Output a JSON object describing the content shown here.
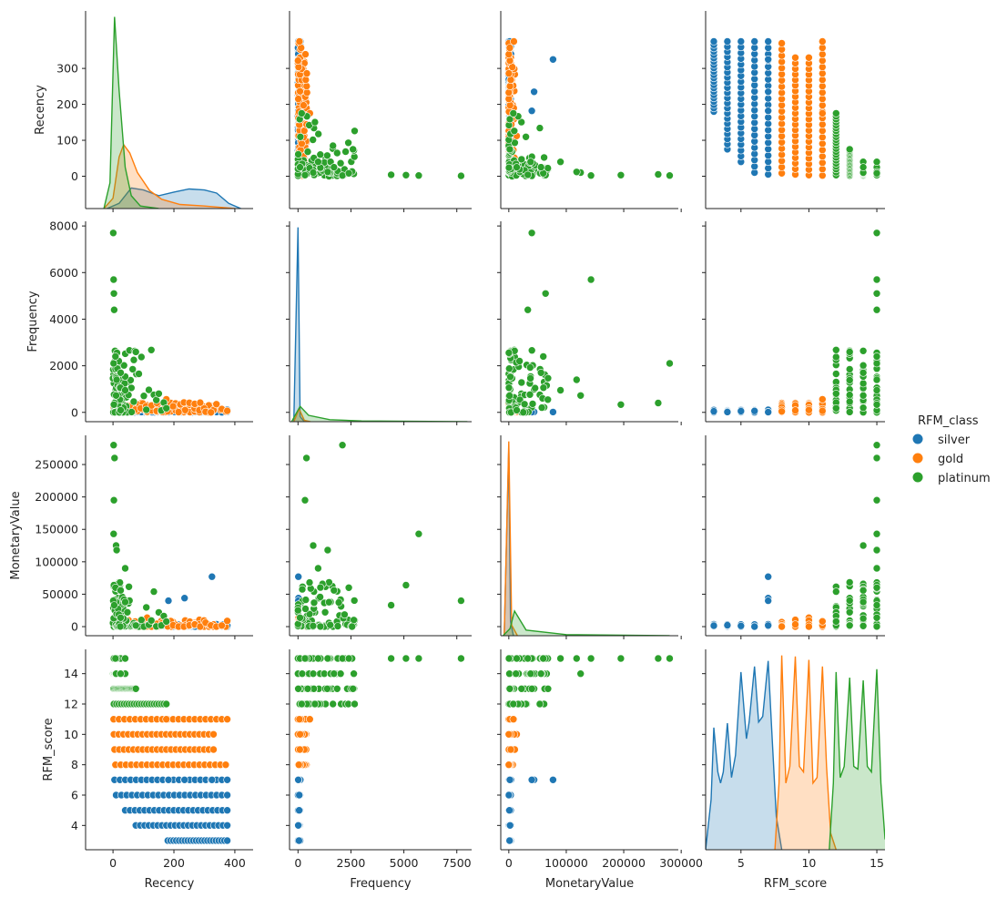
{
  "chart_data": {
    "type": "pairplot",
    "variables": [
      "Recency",
      "Frequency",
      "MonetaryValue",
      "RFM_score"
    ],
    "hue": "RFM_class",
    "legend": {
      "title": "RFM_class",
      "position": "center-right",
      "entries": [
        "silver",
        "gold",
        "platinum"
      ]
    },
    "colors": {
      "silver": "#1f77b4",
      "gold": "#ff7f0e",
      "platinum": "#2ca02c"
    },
    "axes": {
      "Recency": {
        "lim": [
          -90,
          460
        ],
        "ticks": [
          0,
          100,
          200,
          300
        ],
        "tick_labels": [
          "0",
          "100",
          "200",
          "300"
        ],
        "x_ticks": [
          0,
          200,
          400
        ],
        "x_tick_labels": [
          "0",
          "200",
          "400"
        ]
      },
      "Frequency": {
        "lim": [
          -400,
          8200
        ],
        "ticks": [
          0,
          2000,
          4000,
          6000,
          8000
        ],
        "tick_labels": [
          "0",
          "2000",
          "4000",
          "6000",
          "8000"
        ],
        "x_ticks": [
          0,
          2500,
          5000,
          7500
        ],
        "x_tick_labels": [
          "0",
          "2500",
          "5000",
          "7500"
        ]
      },
      "MonetaryValue": {
        "lim": [
          -14000,
          295000
        ],
        "ticks": [
          0,
          50000,
          100000,
          150000,
          200000,
          250000
        ],
        "tick_labels": [
          "0",
          "50000",
          "100000",
          "150000",
          "200000",
          "250000"
        ],
        "x_ticks": [
          0,
          100000,
          200000,
          300000
        ],
        "x_tick_labels": [
          "0",
          "100000",
          "200000",
          "300000"
        ]
      },
      "RFM_score": {
        "lim": [
          2.4,
          15.6
        ],
        "ticks": [
          4,
          6,
          8,
          10,
          12,
          14
        ],
        "tick_labels": [
          "4",
          "6",
          "8",
          "10",
          "12",
          "14"
        ],
        "x_ticks": [
          5,
          10,
          15
        ],
        "x_tick_labels": [
          "5",
          "10",
          "15"
        ]
      }
    },
    "classes": [
      {
        "name": "silver",
        "scores": [
          3,
          4,
          5,
          6,
          7
        ],
        "recency_range": [
          [
            180,
            375
          ],
          [
            75,
            375
          ],
          [
            40,
            375
          ],
          [
            10,
            375
          ],
          [
            5,
            375
          ]
        ],
        "frequency_max": 110,
        "monetary_max": 4000,
        "outliers": [
          {
            "Recency": 325,
            "Frequency": 15,
            "MonetaryValue": 77000,
            "RFM_score": 7
          },
          {
            "Recency": 235,
            "Frequency": 20,
            "MonetaryValue": 44000,
            "RFM_score": 7
          },
          {
            "Recency": 182,
            "Frequency": 12,
            "MonetaryValue": 40000,
            "RFM_score": 7
          }
        ]
      },
      {
        "name": "gold",
        "scores": [
          8,
          9,
          10,
          11
        ],
        "recency_range": [
          [
            8,
            370
          ],
          [
            5,
            330
          ],
          [
            3,
            330
          ],
          [
            2,
            375
          ]
        ],
        "frequency_max": 450,
        "monetary_max": 14000,
        "outliers": [
          {
            "Recency": 175,
            "Frequency": 560,
            "MonetaryValue": 8000,
            "RFM_score": 11
          }
        ]
      },
      {
        "name": "platinum",
        "scores": [
          12,
          13,
          14,
          15
        ],
        "recency_range": [
          [
            3,
            175
          ],
          [
            2,
            75
          ],
          [
            1,
            40
          ],
          [
            0,
            25
          ]
        ],
        "frequency_max": 2700,
        "monetary_max": 70000,
        "outliers": [
          {
            "Recency": 1,
            "Frequency": 7700,
            "MonetaryValue": 40000,
            "RFM_score": 15
          },
          {
            "Recency": 2,
            "Frequency": 5700,
            "MonetaryValue": 143000,
            "RFM_score": 15
          },
          {
            "Recency": 3,
            "Frequency": 5100,
            "MonetaryValue": 64000,
            "RFM_score": 15
          },
          {
            "Recency": 4,
            "Frequency": 4400,
            "MonetaryValue": 33000,
            "RFM_score": 15
          },
          {
            "Recency": 2,
            "Frequency": 2100,
            "MonetaryValue": 280000,
            "RFM_score": 15
          },
          {
            "Recency": 5,
            "Frequency": 400,
            "MonetaryValue": 260000,
            "RFM_score": 15
          },
          {
            "Recency": 3,
            "Frequency": 330,
            "MonetaryValue": 195000,
            "RFM_score": 15
          },
          {
            "Recency": 10,
            "Frequency": 720,
            "MonetaryValue": 125000,
            "RFM_score": 14
          },
          {
            "Recency": 12,
            "Frequency": 1400,
            "MonetaryValue": 118000,
            "RFM_score": 15
          },
          {
            "Recency": 40,
            "Frequency": 950,
            "MonetaryValue": 90000,
            "RFM_score": 15
          },
          {
            "Recency": 8,
            "Frequency": 2400,
            "MonetaryValue": 60000,
            "RFM_score": 15
          },
          {
            "Recency": 25,
            "Frequency": 1700,
            "MonetaryValue": 56000,
            "RFM_score": 14
          }
        ]
      }
    ],
    "diagonal_kde": {
      "Recency": {
        "silver": [
          [
            -20,
            0
          ],
          [
            20,
            10
          ],
          [
            60,
            40
          ],
          [
            100,
            36
          ],
          [
            150,
            25
          ],
          [
            200,
            32
          ],
          [
            250,
            38
          ],
          [
            300,
            36
          ],
          [
            340,
            30
          ],
          [
            380,
            10
          ],
          [
            420,
            0
          ]
        ],
        "gold": [
          [
            -30,
            0
          ],
          [
            0,
            20
          ],
          [
            20,
            100
          ],
          [
            35,
            124
          ],
          [
            55,
            108
          ],
          [
            80,
            70
          ],
          [
            120,
            35
          ],
          [
            160,
            18
          ],
          [
            220,
            8
          ],
          [
            300,
            5
          ],
          [
            400,
            0
          ]
        ],
        "platinum": [
          [
            -30,
            0
          ],
          [
            -10,
            50
          ],
          [
            5,
            372
          ],
          [
            20,
            230
          ],
          [
            40,
            80
          ],
          [
            60,
            25
          ],
          [
            90,
            5
          ],
          [
            150,
            0
          ]
        ]
      },
      "Frequency": {
        "silver": [
          [
            -200,
            0
          ],
          [
            0,
            7600
          ],
          [
            100,
            200
          ],
          [
            300,
            0
          ]
        ],
        "gold": [
          [
            -200,
            0
          ],
          [
            50,
            500
          ],
          [
            300,
            50
          ],
          [
            600,
            0
          ]
        ],
        "platinum": [
          [
            -300,
            0
          ],
          [
            100,
            600
          ],
          [
            500,
            250
          ],
          [
            1500,
            80
          ],
          [
            3000,
            30
          ],
          [
            8000,
            0
          ]
        ]
      },
      "MonetaryValue": {
        "silver": [
          [
            -8000,
            0
          ],
          [
            0,
            266000
          ],
          [
            3000,
            20000
          ],
          [
            8000,
            0
          ]
        ],
        "gold": [
          [
            -8000,
            0
          ],
          [
            0,
            276000
          ],
          [
            5000,
            15000
          ],
          [
            15000,
            0
          ]
        ],
        "platinum": [
          [
            -10000,
            0
          ],
          [
            2000,
            10000
          ],
          [
            10000,
            35000
          ],
          [
            30000,
            8000
          ],
          [
            100000,
            1500
          ],
          [
            280000,
            0
          ]
        ]
      },
      "RFM_score": {
        "silver": [
          [
            2.4,
            0
          ],
          [
            2.8,
            90
          ],
          [
            3,
            220
          ],
          [
            3.3,
            140
          ],
          [
            3.5,
            120
          ],
          [
            3.7,
            140
          ],
          [
            4,
            228
          ],
          [
            4.3,
            130
          ],
          [
            4.6,
            170
          ],
          [
            5,
            320
          ],
          [
            5.4,
            200
          ],
          [
            5.6,
            230
          ],
          [
            6,
            330
          ],
          [
            6.3,
            230
          ],
          [
            6.6,
            240
          ],
          [
            7,
            340
          ],
          [
            7.3,
            200
          ],
          [
            7.6,
            60
          ],
          [
            8,
            0
          ]
        ],
        "gold": [
          [
            7.5,
            0
          ],
          [
            7.8,
            120
          ],
          [
            8,
            350
          ],
          [
            8.3,
            120
          ],
          [
            8.6,
            150
          ],
          [
            9,
            348
          ],
          [
            9.3,
            150
          ],
          [
            9.6,
            140
          ],
          [
            10,
            342
          ],
          [
            10.3,
            120
          ],
          [
            10.6,
            130
          ],
          [
            11,
            330
          ],
          [
            11.3,
            150
          ],
          [
            11.6,
            30
          ],
          [
            12,
            0
          ]
        ],
        "platinum": [
          [
            11.5,
            0
          ],
          [
            11.8,
            120
          ],
          [
            12,
            320
          ],
          [
            12.3,
            130
          ],
          [
            12.6,
            150
          ],
          [
            13,
            310
          ],
          [
            13.3,
            150
          ],
          [
            13.6,
            145
          ],
          [
            14,
            305
          ],
          [
            14.3,
            150
          ],
          [
            14.6,
            140
          ],
          [
            15,
            325
          ],
          [
            15.3,
            120
          ],
          [
            15.6,
            20
          ],
          [
            16,
            0
          ]
        ]
      }
    }
  }
}
